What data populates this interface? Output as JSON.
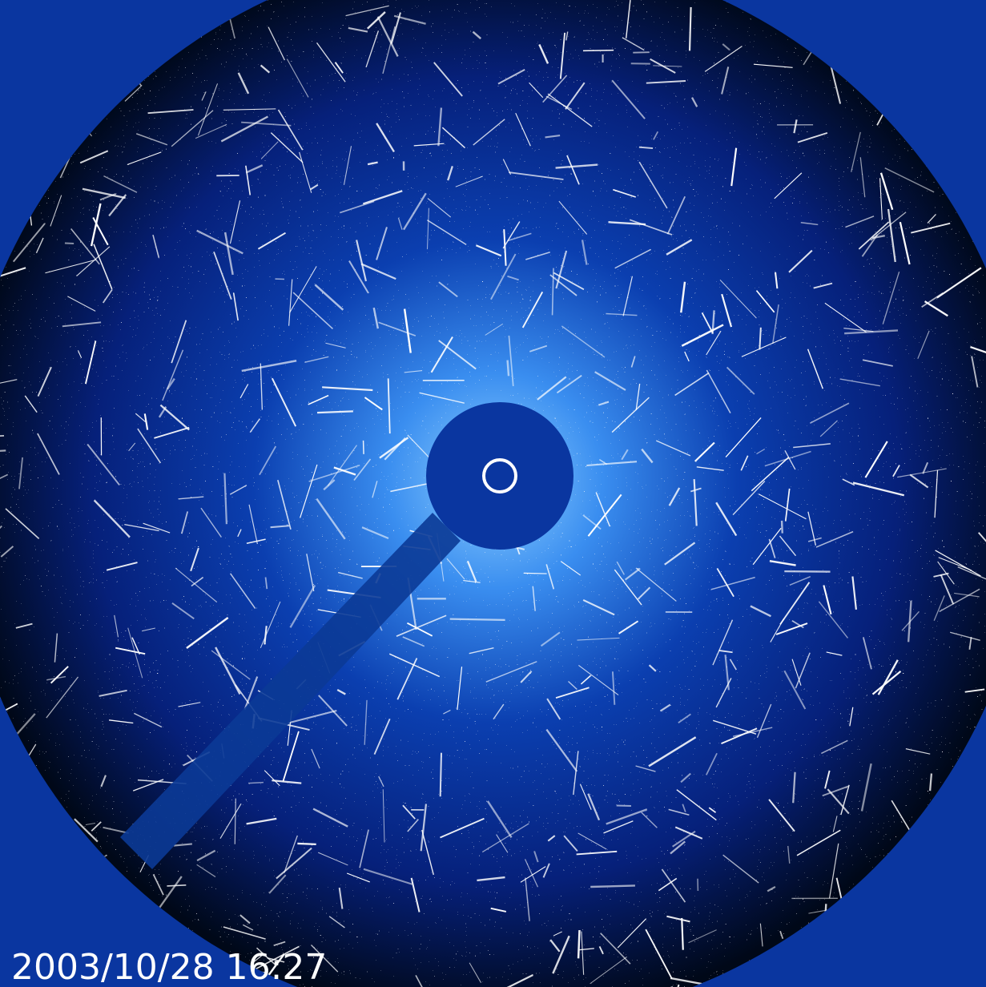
{
  "image": {
    "timestamp": "2003/10/28 16:27"
  }
}
